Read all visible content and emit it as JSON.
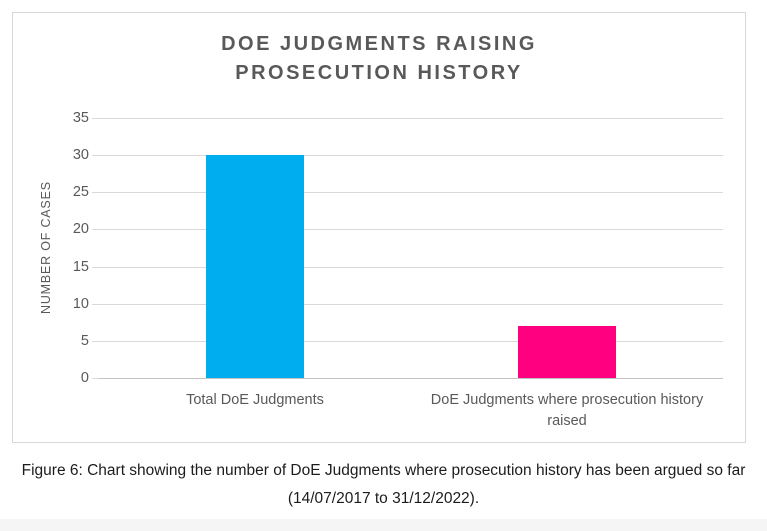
{
  "chart_data": {
    "type": "bar",
    "title": "DOE JUDGMENTS RAISING PROSECUTION HISTORY",
    "title_lines": [
      "DOE JUDGMENTS RAISING",
      "PROSECUTION HISTORY"
    ],
    "categories": [
      "Total DoE Judgments",
      "DoE Judgments where prosecution history raised"
    ],
    "values": [
      30,
      7
    ],
    "bar_colors": [
      "#00AEEF",
      "#FF0080"
    ],
    "xlabel": "",
    "ylabel": "NUMBER OF CASES",
    "ylim": [
      0,
      35
    ],
    "yticks": [
      0,
      5,
      10,
      15,
      20,
      25,
      30,
      35
    ],
    "grid": true,
    "legend": false,
    "colors": {
      "grid": "#d9d9d9",
      "axis_line": "#c3c3c3",
      "text": "#595959",
      "title": "#595959"
    }
  },
  "caption": {
    "line1": "Figure 6: Chart showing the number of DoE Judgments where prosecution history has been argued so far",
    "line2": "(14/07/2017 to 31/12/2022)."
  }
}
